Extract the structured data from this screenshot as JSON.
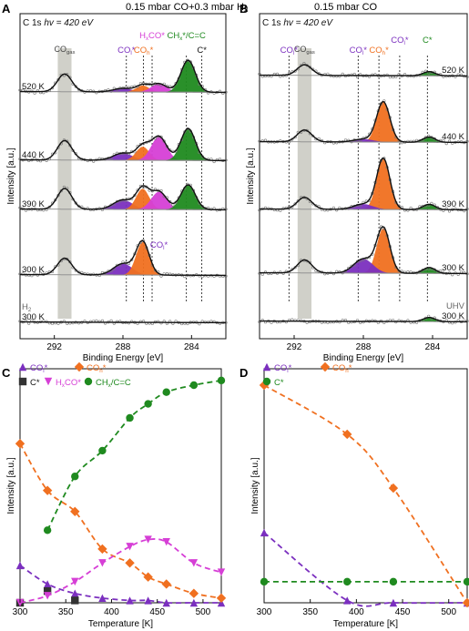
{
  "colors": {
    "purple": "#7b2fbf",
    "orange": "#f07020",
    "magenta": "#d63fd6",
    "green": "#1f8a1f",
    "gray": "#8a8a8a",
    "band": "#c8c8c0",
    "black": "#111111"
  },
  "panels": {
    "A": {
      "letter": "A",
      "header": "0.15 mbar CO+0.3 mbar H",
      "header_sub": "2"
    },
    "B": {
      "letter": "B",
      "header": "0.15 mbar CO"
    },
    "C": {
      "letter": "C"
    },
    "D": {
      "letter": "D"
    }
  },
  "chart_data": [
    {
      "id": "A",
      "type": "line",
      "title": "0.15 mbar CO+0.3 mbar H2",
      "region": "C 1s",
      "photon": "hv = 420 eV",
      "xlabel": "Binding Energy [eV]",
      "ylabel": "Intensity [a.u.]",
      "xlim": [
        294,
        282
      ],
      "xticks": [
        292,
        288,
        284
      ],
      "band_label": "CO",
      "band_label_sub": "gas",
      "peak_labels": [
        {
          "text": "CO",
          "sub": "l",
          "suffix": "*",
          "x": 287.8,
          "color": "#7b2fbf"
        },
        {
          "text": "CO",
          "sub": "h",
          "suffix": "*",
          "x": 286.8,
          "color": "#f07020"
        },
        {
          "text": "H",
          "sub": "x",
          "suffix": "CO*",
          "x": 286.3,
          "color": "#d63fd6"
        },
        {
          "text": "CH",
          "sub": "x",
          "suffix": "*/C=C",
          "x": 284.3,
          "color": "#1f8a1f"
        },
        {
          "text": "C*",
          "sub": "",
          "suffix": "",
          "x": 283.4,
          "color": "#111111"
        },
        {
          "text": "CO",
          "sub": "l",
          "suffix": "*",
          "x": 285.8,
          "color": "#7b2fbf"
        }
      ],
      "series": [
        {
          "name": "520 K",
          "temperature": 520,
          "peaks": {
            "gas": 3.0,
            "COl": 0.6,
            "COh": 1.1,
            "HxCO": 1.4,
            "CHx": 5.4
          }
        },
        {
          "name": "440 K",
          "temperature": 440,
          "peaks": {
            "gas": 3.3,
            "COl": 1.2,
            "COh": 2.3,
            "HxCO": 4.0,
            "CHx": 5.4
          }
        },
        {
          "name": "390 K",
          "temperature": 390,
          "peaks": {
            "gas": 3.5,
            "COl": 1.6,
            "COh": 3.5,
            "HxCO": 3.0,
            "CHx": 4.2
          }
        },
        {
          "name": "300 K",
          "temperature": 300,
          "peaks": {
            "gas": 2.8,
            "COl": 1.9,
            "COh": 5.6,
            "HxCO": 0.0,
            "CHx": 0.0
          }
        },
        {
          "name": "300 K",
          "label_prefix": "H",
          "label_prefix_sub": "2",
          "temperature": 300,
          "peaks": {
            "gas": 0,
            "COl": 0,
            "COh": 0,
            "HxCO": 0,
            "CHx": 0
          }
        }
      ]
    },
    {
      "id": "B",
      "type": "line",
      "title": "0.15 mbar CO",
      "region": "C 1s",
      "photon": "hv = 420 eV",
      "xlabel": "Binding Energy [eV]",
      "ylabel": "Intensity [a.u.]",
      "xlim": [
        294,
        282
      ],
      "xticks": [
        292,
        288,
        284
      ],
      "band_label": "CO",
      "band_label_sub": "gas",
      "peak_labels": [
        {
          "text": "CO",
          "sub": "l",
          "suffix": "*",
          "x": 292.3,
          "color": "#7b2fbf"
        },
        {
          "text": "CO",
          "sub": "l",
          "suffix": "*",
          "x": 288.3,
          "color": "#7b2fbf"
        },
        {
          "text": "CO",
          "sub": "h",
          "suffix": "*",
          "x": 287.1,
          "color": "#f07020"
        },
        {
          "text": "CO",
          "sub": "l",
          "suffix": "*",
          "x": 285.9,
          "color": "#7b2fbf"
        },
        {
          "text": "C*",
          "sub": "",
          "suffix": "",
          "x": 284.3,
          "color": "#1f8a1f"
        }
      ],
      "series": [
        {
          "name": "520 K",
          "temperature": 520,
          "peaks": {
            "gas": 1.8,
            "COh": 0.0,
            "COl": 0.0,
            "C": 0.7
          }
        },
        {
          "name": "440 K",
          "temperature": 440,
          "peaks": {
            "gas": 2.0,
            "COh": 6.8,
            "COl": 0.5,
            "C": 0.9
          }
        },
        {
          "name": "390 K",
          "temperature": 390,
          "peaks": {
            "gas": 2.0,
            "COh": 8.6,
            "COl": 0.9,
            "C": 0.9
          }
        },
        {
          "name": "300 K",
          "temperature": 300,
          "peaks": {
            "gas": 2.2,
            "COh": 7.6,
            "COl": 2.4,
            "C": 1.0
          }
        },
        {
          "name": "300 K",
          "label_prefix": "UHV",
          "temperature": 300,
          "peaks": {
            "gas": 0,
            "COh": 0,
            "COl": 0,
            "C": 0.7
          }
        }
      ]
    },
    {
      "id": "C",
      "type": "scatter",
      "xlabel": "Temperature [K]",
      "ylabel": "Intensity [a.u.]",
      "xlim": [
        300,
        520
      ],
      "ylim": [
        0,
        1
      ],
      "xticks": [
        300,
        350,
        400,
        450,
        500
      ],
      "legend": "top-left",
      "series": [
        {
          "name": "CO",
          "name_sub": "l",
          "name_suffix": "*",
          "marker": "triangle",
          "color": "#7b2fbf",
          "x": [
            300,
            330,
            360,
            390,
            420,
            440,
            460,
            490,
            520
          ],
          "y": [
            0.16,
            0.08,
            0.04,
            0.02,
            0.01,
            0.01,
            0.0,
            0.0,
            0.0
          ]
        },
        {
          "name": "CO",
          "name_sub": "h",
          "name_suffix": "*",
          "marker": "diamond",
          "color": "#f07020",
          "x": [
            300,
            330,
            360,
            390,
            420,
            440,
            460,
            490,
            520
          ],
          "y": [
            0.68,
            0.48,
            0.39,
            0.23,
            0.17,
            0.11,
            0.08,
            0.04,
            0.02
          ]
        },
        {
          "name": "C*",
          "name_sub": "",
          "name_suffix": "",
          "marker": "square",
          "color": "#333333",
          "x": [
            300,
            330,
            360
          ],
          "y": [
            0.0,
            0.05,
            0.01
          ]
        },
        {
          "name": "H",
          "name_sub": "x",
          "name_suffix": "CO*",
          "marker": "triangle-down",
          "color": "#d63fd6",
          "x": [
            300,
            330,
            360,
            390,
            420,
            440,
            460,
            490,
            520
          ],
          "y": [
            0.0,
            0.03,
            0.09,
            0.17,
            0.24,
            0.27,
            0.26,
            0.17,
            0.13
          ]
        },
        {
          "name": "CH",
          "name_sub": "x",
          "name_suffix": "/C=C",
          "marker": "circle",
          "color": "#1f8a1f",
          "x": [
            330,
            360,
            390,
            420,
            440,
            460,
            490,
            520
          ],
          "y": [
            0.31,
            0.54,
            0.65,
            0.79,
            0.85,
            0.9,
            0.93,
            0.95
          ]
        }
      ]
    },
    {
      "id": "D",
      "type": "scatter",
      "xlabel": "Temperature [K]",
      "ylabel": "Intensity [a.u.]",
      "xlim": [
        300,
        520
      ],
      "ylim": [
        0,
        1
      ],
      "xticks": [
        300,
        350,
        400,
        450,
        500
      ],
      "legend": "top-left",
      "series": [
        {
          "name": "CO",
          "name_sub": "l",
          "name_suffix": "*",
          "marker": "triangle",
          "color": "#7b2fbf",
          "x": [
            300,
            390,
            440,
            520
          ],
          "y": [
            0.3,
            0.01,
            0.0,
            0.0
          ]
        },
        {
          "name": "CO",
          "name_sub": "h",
          "name_suffix": "*",
          "marker": "diamond",
          "color": "#f07020",
          "x": [
            300,
            390,
            440,
            520
          ],
          "y": [
            0.93,
            0.72,
            0.49,
            0.0
          ]
        },
        {
          "name": "C*",
          "name_sub": "",
          "name_suffix": "",
          "marker": "circle",
          "color": "#1f8a1f",
          "x": [
            300,
            390,
            440,
            520
          ],
          "y": [
            0.09,
            0.09,
            0.09,
            0.09
          ]
        }
      ]
    }
  ]
}
